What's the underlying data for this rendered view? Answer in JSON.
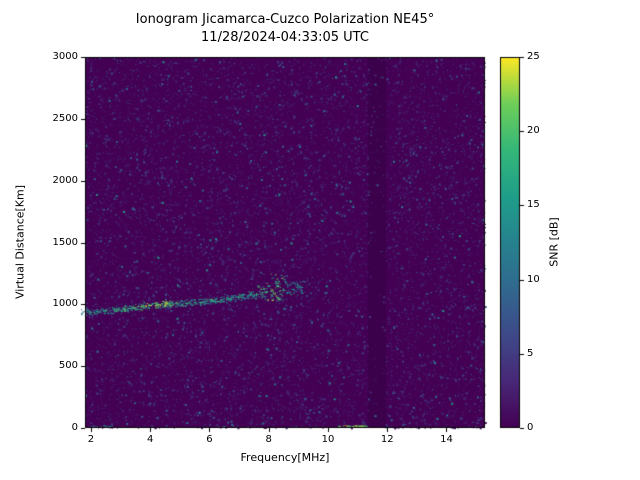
{
  "chart_data": {
    "type": "heatmap",
    "title": "Ionogram Jicamarca-Cuzco Polarization NE45°",
    "subtitle": "11/28/2024-04:33:05 UTC",
    "xlabel": "Frequency[MHz]",
    "ylabel": "Virtual Distance[Km]",
    "xlim": [
      1.8,
      15.3
    ],
    "ylim": [
      0,
      3000
    ],
    "xticks": [
      2,
      4,
      6,
      8,
      10,
      12,
      14
    ],
    "yticks": [
      0,
      500,
      1000,
      1500,
      2000,
      2500,
      3000
    ],
    "grid": false,
    "colorbar": {
      "label": "SNR [dB]",
      "ticks": [
        0,
        5,
        10,
        15,
        20,
        25
      ],
      "range": [
        0,
        25
      ],
      "colormap": "viridis",
      "stops": [
        {
          "t": 0.0,
          "c": "#440154"
        },
        {
          "t": 0.125,
          "c": "#482878"
        },
        {
          "t": 0.25,
          "c": "#3e4989"
        },
        {
          "t": 0.375,
          "c": "#31688e"
        },
        {
          "t": 0.5,
          "c": "#26828e"
        },
        {
          "t": 0.625,
          "c": "#1f9e89"
        },
        {
          "t": 0.75,
          "c": "#35b779"
        },
        {
          "t": 0.875,
          "c": "#6ece58"
        },
        {
          "t": 1.0,
          "c": "#fde725"
        }
      ]
    },
    "background_snr_db": 0,
    "noise": {
      "seed": 20241128,
      "dots": 16000,
      "mean_snr_db": 2.8,
      "max_snr_db": 15
    },
    "attenuated_band_mhz": [
      11.35,
      11.95
    ],
    "echo_trace": [
      {
        "f": 1.95,
        "km": 940,
        "snr": 13
      },
      {
        "f": 2.2,
        "km": 945,
        "snr": 14
      },
      {
        "f": 2.5,
        "km": 950,
        "snr": 14
      },
      {
        "f": 2.8,
        "km": 958,
        "snr": 15
      },
      {
        "f": 3.1,
        "km": 965,
        "snr": 16
      },
      {
        "f": 3.4,
        "km": 975,
        "snr": 16
      },
      {
        "f": 3.7,
        "km": 985,
        "snr": 18
      },
      {
        "f": 4.0,
        "km": 995,
        "snr": 20
      },
      {
        "f": 4.3,
        "km": 1000,
        "snr": 20
      },
      {
        "f": 4.6,
        "km": 1005,
        "snr": 18
      },
      {
        "f": 4.9,
        "km": 1008,
        "snr": 16
      },
      {
        "f": 5.2,
        "km": 1012,
        "snr": 15
      },
      {
        "f": 5.5,
        "km": 1018,
        "snr": 14
      },
      {
        "f": 5.8,
        "km": 1025,
        "snr": 14
      },
      {
        "f": 6.1,
        "km": 1032,
        "snr": 15
      },
      {
        "f": 6.4,
        "km": 1040,
        "snr": 14
      },
      {
        "f": 6.7,
        "km": 1050,
        "snr": 13
      },
      {
        "f": 7.0,
        "km": 1062,
        "snr": 15
      },
      {
        "f": 7.3,
        "km": 1072,
        "snr": 14
      },
      {
        "f": 7.6,
        "km": 1085,
        "snr": 15
      },
      {
        "f": 7.9,
        "km": 1098,
        "snr": 17,
        "spread_km": 60
      },
      {
        "f": 8.1,
        "km": 1120,
        "snr": 20,
        "spread_km": 110
      },
      {
        "f": 8.3,
        "km": 1150,
        "snr": 18,
        "spread_km": 140
      },
      {
        "f": 8.5,
        "km": 1115,
        "snr": 15,
        "spread_km": 80
      },
      {
        "f": 8.8,
        "km": 1125,
        "snr": 12,
        "spread_km": 60
      },
      {
        "f": 9.1,
        "km": 1140,
        "snr": 10,
        "spread_km": 50
      }
    ],
    "ground_echo_segments": [
      {
        "f_start": 2.0,
        "f_end": 2.7,
        "km": 0,
        "snr": 14,
        "dots": 12
      },
      {
        "f_start": 10.35,
        "f_end": 11.3,
        "km": 0,
        "snr": 22,
        "dots": 45
      }
    ]
  }
}
